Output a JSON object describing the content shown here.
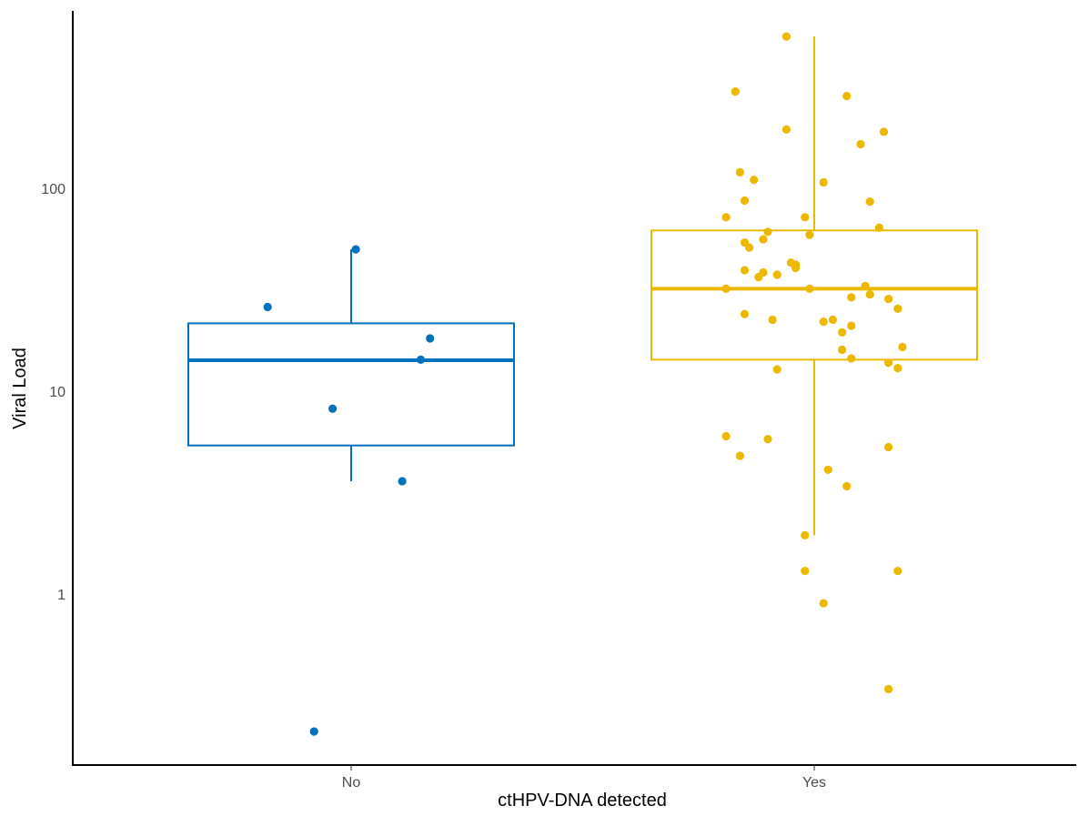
{
  "chart_data": {
    "type": "box",
    "xlabel": "ctHPV-DNA detected",
    "ylabel": "Viral Load",
    "y_scale": "log10",
    "ylim": [
      0.18,
      650
    ],
    "y_ticks": [
      {
        "value": 1,
        "label": "1"
      },
      {
        "value": 10,
        "label": "10"
      },
      {
        "value": 100,
        "label": "100"
      }
    ],
    "categories": [
      "No",
      "Yes"
    ],
    "grid": false,
    "legend": "none",
    "series": [
      {
        "category": "No",
        "color": "#0072BD",
        "box": {
          "whisker_low": 3.6,
          "q1": 5.4,
          "median": 14.2,
          "q3": 21.6,
          "whisker_high": 50
        },
        "points": [
          {
            "x_jitter": -0.18,
            "y": 26
          },
          {
            "x_jitter": 0.01,
            "y": 50
          },
          {
            "x_jitter": -0.04,
            "y": 8.2
          },
          {
            "x_jitter": 0.15,
            "y": 14.3
          },
          {
            "x_jitter": 0.17,
            "y": 18.2
          },
          {
            "x_jitter": 0.11,
            "y": 3.6
          },
          {
            "x_jitter": -0.08,
            "y": 0.21
          }
        ]
      },
      {
        "category": "Yes",
        "color": "#EDB800",
        "box": {
          "whisker_low": 1.95,
          "q1": 14.3,
          "median": 32,
          "q3": 62,
          "whisker_high": 560
        },
        "points": [
          {
            "x_jitter": -0.06,
            "y": 560
          },
          {
            "x_jitter": -0.17,
            "y": 300
          },
          {
            "x_jitter": 0.07,
            "y": 285
          },
          {
            "x_jitter": -0.06,
            "y": 195
          },
          {
            "x_jitter": 0.15,
            "y": 190
          },
          {
            "x_jitter": 0.1,
            "y": 165
          },
          {
            "x_jitter": -0.16,
            "y": 120
          },
          {
            "x_jitter": -0.13,
            "y": 110
          },
          {
            "x_jitter": 0.02,
            "y": 107
          },
          {
            "x_jitter": -0.15,
            "y": 87
          },
          {
            "x_jitter": 0.12,
            "y": 86
          },
          {
            "x_jitter": -0.19,
            "y": 72
          },
          {
            "x_jitter": -0.02,
            "y": 72
          },
          {
            "x_jitter": 0.14,
            "y": 64
          },
          {
            "x_jitter": -0.1,
            "y": 61
          },
          {
            "x_jitter": -0.01,
            "y": 59
          },
          {
            "x_jitter": -0.11,
            "y": 56
          },
          {
            "x_jitter": -0.15,
            "y": 54
          },
          {
            "x_jitter": -0.14,
            "y": 51
          },
          {
            "x_jitter": -0.05,
            "y": 43
          },
          {
            "x_jitter": -0.04,
            "y": 42
          },
          {
            "x_jitter": -0.04,
            "y": 40.5
          },
          {
            "x_jitter": -0.15,
            "y": 39.5
          },
          {
            "x_jitter": -0.11,
            "y": 38.5
          },
          {
            "x_jitter": -0.08,
            "y": 37.5
          },
          {
            "x_jitter": -0.12,
            "y": 36.5
          },
          {
            "x_jitter": 0.11,
            "y": 33
          },
          {
            "x_jitter": -0.19,
            "y": 32
          },
          {
            "x_jitter": -0.01,
            "y": 32
          },
          {
            "x_jitter": 0.12,
            "y": 30
          },
          {
            "x_jitter": 0.08,
            "y": 29
          },
          {
            "x_jitter": 0.16,
            "y": 28.5
          },
          {
            "x_jitter": 0.18,
            "y": 25.5
          },
          {
            "x_jitter": -0.15,
            "y": 24
          },
          {
            "x_jitter": -0.09,
            "y": 22.5
          },
          {
            "x_jitter": 0.04,
            "y": 22.5
          },
          {
            "x_jitter": 0.02,
            "y": 22
          },
          {
            "x_jitter": 0.08,
            "y": 21
          },
          {
            "x_jitter": 0.06,
            "y": 19.5
          },
          {
            "x_jitter": 0.19,
            "y": 16.5
          },
          {
            "x_jitter": 0.06,
            "y": 16
          },
          {
            "x_jitter": 0.08,
            "y": 14.5
          },
          {
            "x_jitter": 0.16,
            "y": 13.8
          },
          {
            "x_jitter": 0.18,
            "y": 13
          },
          {
            "x_jitter": -0.08,
            "y": 12.8
          },
          {
            "x_jitter": -0.19,
            "y": 6
          },
          {
            "x_jitter": -0.1,
            "y": 5.8
          },
          {
            "x_jitter": 0.16,
            "y": 5.3
          },
          {
            "x_jitter": -0.16,
            "y": 4.8
          },
          {
            "x_jitter": 0.03,
            "y": 4.1
          },
          {
            "x_jitter": 0.07,
            "y": 3.4
          },
          {
            "x_jitter": -0.02,
            "y": 1.95
          },
          {
            "x_jitter": -0.02,
            "y": 1.3
          },
          {
            "x_jitter": 0.18,
            "y": 1.3
          },
          {
            "x_jitter": 0.02,
            "y": 0.9
          },
          {
            "x_jitter": 0.16,
            "y": 0.34
          }
        ]
      }
    ]
  }
}
